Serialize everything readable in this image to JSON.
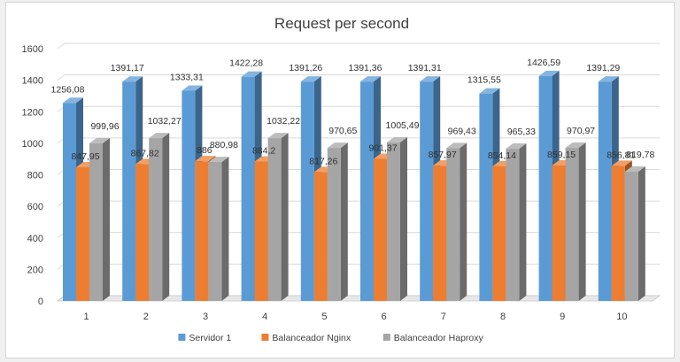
{
  "chart_data": {
    "type": "bar",
    "title": "Request per second",
    "categories": [
      "1",
      "2",
      "3",
      "4",
      "5",
      "6",
      "7",
      "8",
      "9",
      "10"
    ],
    "series": [
      {
        "name": "Servidor 1",
        "color": "#5b9bd5",
        "values": [
          1256.08,
          1391.17,
          1333.31,
          1422.28,
          1391.26,
          1391.36,
          1391.31,
          1315.55,
          1426.59,
          1391.29
        ],
        "labels": [
          "1256,08",
          "1391,17",
          "1333,31",
          "1422,28",
          "1391,26",
          "1391,36",
          "1391,31",
          "1315,55",
          "1426,59",
          "1391,29"
        ]
      },
      {
        "name": "Balanceador Nginx",
        "color": "#ed7d31",
        "values": [
          847.95,
          867.82,
          886.0,
          884.2,
          817.26,
          901.37,
          857.97,
          854.14,
          859.15,
          856.81
        ],
        "labels": [
          "847,95",
          "867,82",
          "886",
          "884,2",
          "817,26",
          "901,37",
          "857,97",
          "854,14",
          "859,15",
          "856,81"
        ]
      },
      {
        "name": "Balanceador Haproxy",
        "color": "#a5a5a5",
        "values": [
          999.96,
          1032.27,
          880.98,
          1032.22,
          970.65,
          1005.49,
          969.43,
          965.33,
          970.97,
          819.78
        ],
        "labels": [
          "999,96",
          "1032,27",
          "880,98",
          "1032,22",
          "970,65",
          "1005,49",
          "969,43",
          "965,33",
          "970,97",
          "819,78"
        ]
      }
    ],
    "yticks": [
      "0",
      "200",
      "400",
      "600",
      "800",
      "1000",
      "1200",
      "1400",
      "1600"
    ],
    "ylim": [
      0,
      1600
    ],
    "grid": true,
    "legend_position": "bottom",
    "three_d": true
  }
}
